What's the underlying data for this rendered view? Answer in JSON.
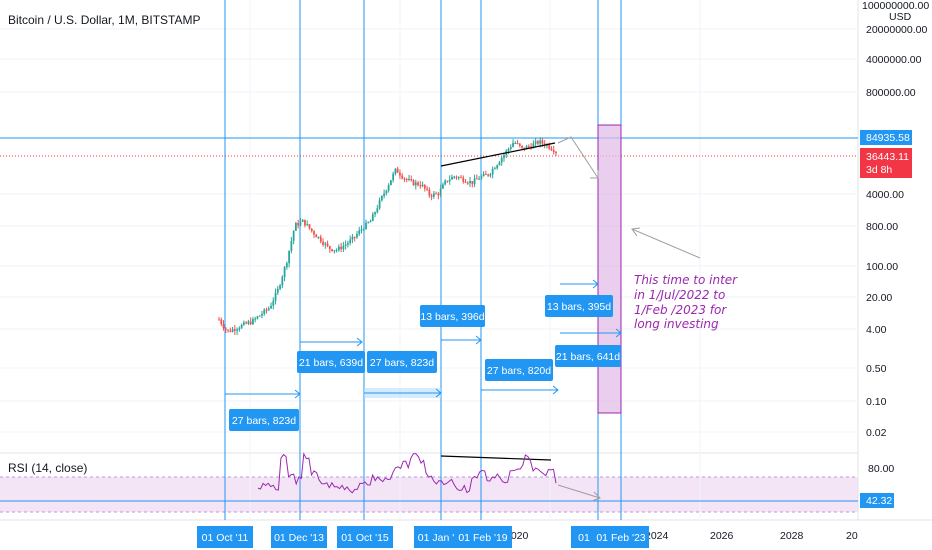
{
  "header": {
    "title": "Bitcoin / U.S. Dollar, 1M, BITSTAMP"
  },
  "price_axis": {
    "top_label": "100000000.00",
    "currency": "USD",
    "ticks": [
      "20000000.00",
      "4000000.00",
      "800000.00",
      "4000.00",
      "800.00",
      "100.00",
      "20.00",
      "4.00",
      "0.50",
      "0.10",
      "0.02"
    ],
    "resistance_tag": "84935.58",
    "current_price_tag": "36443.11",
    "countdown": "3d 8h",
    "resistance_color": "#2196f3",
    "current_color": "#f23645"
  },
  "rsi": {
    "label": "RSI (14, close)",
    "ticks": [
      "80.00"
    ],
    "value_tag": "42.32",
    "line_color": "#9c27b0"
  },
  "time_axis": {
    "labels": [
      "2020",
      "2024",
      "2026",
      "2028",
      "20"
    ],
    "date_tags": [
      "01 Oct '11",
      "01 Dec '13",
      "01 Oct '15",
      "01 Jan '",
      "01 Feb '19",
      "01",
      "01 Feb '23"
    ]
  },
  "measurements": [
    {
      "label": "27 bars, 823d"
    },
    {
      "label": "21 bars, 639d"
    },
    {
      "label": "27 bars, 823d"
    },
    {
      "label": "13 bars, 396d"
    },
    {
      "label": "27 bars, 820d"
    },
    {
      "label": "13 bars, 395d"
    },
    {
      "label": "21 bars, 641d"
    }
  ],
  "annotation": {
    "lines": [
      "This time to inter",
      "in 1/Jul/2022 to",
      "1/Feb /2023 for",
      "long investing"
    ],
    "color": "#9c27b0"
  },
  "chart_data": {
    "type": "candlestick",
    "title": "Bitcoin / U.S. Dollar, 1M, BITSTAMP",
    "y_scale": "log",
    "series": [
      {
        "name": "",
        "values": [
          6.5,
          3.5,
          4.2,
          5.0,
          6.0,
          8.5,
          12,
          30,
          120,
          800,
          1000,
          600,
          400,
          250,
          230,
          300,
          420,
          700,
          1000,
          2500,
          6000,
          14000,
          9000,
          7000,
          6500,
          3800,
          4000,
          8000,
          10000,
          8500,
          7200,
          9500,
          11000,
          19000,
          33000,
          58000,
          40000,
          47000,
          58000,
          48000,
          36443
        ]
      }
    ],
    "resistance_level": 84935.58,
    "current_price": 36443.11,
    "rsi_current": 42.32
  }
}
